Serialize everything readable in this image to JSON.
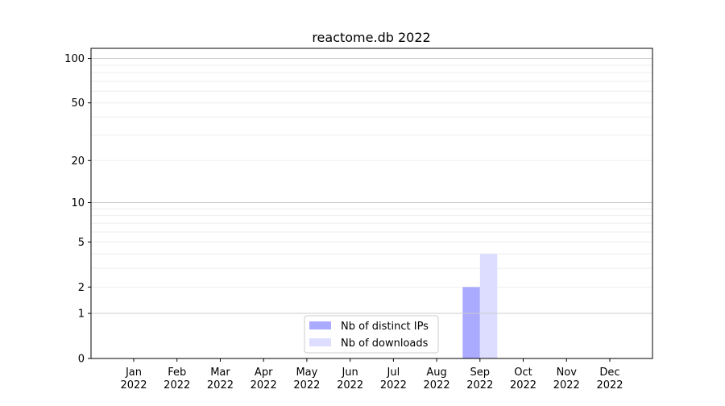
{
  "chart_data": {
    "type": "bar",
    "title": "reactome.db 2022",
    "xlabel": "",
    "ylabel": "",
    "yscale": "log(1+y)",
    "ylim": [
      0,
      117
    ],
    "yticks": [
      0,
      1,
      2,
      5,
      10,
      20,
      50,
      100
    ],
    "ytick_labels": [
      "0",
      "1",
      "2",
      "5",
      "10",
      "20",
      "50",
      "100"
    ],
    "categories": [
      "Jan\n2022",
      "Feb\n2022",
      "Mar\n2022",
      "Apr\n2022",
      "May\n2022",
      "Jun\n2022",
      "Jul\n2022",
      "Aug\n2022",
      "Sep\n2022",
      "Oct\n2022",
      "Nov\n2022",
      "Dec\n2022"
    ],
    "month_labels": [
      "Jan",
      "Feb",
      "Mar",
      "Apr",
      "May",
      "Jun",
      "Jul",
      "Aug",
      "Sep",
      "Oct",
      "Nov",
      "Dec"
    ],
    "year_label": "2022",
    "grid": true,
    "legend_position": "bottom-center",
    "series": [
      {
        "name": "Nb of distinct IPs",
        "color": "#aaaaff",
        "values": [
          0,
          0,
          0,
          0,
          0,
          0,
          0,
          0,
          2,
          0,
          0,
          0
        ]
      },
      {
        "name": "Nb of downloads",
        "color": "#ddddff",
        "values": [
          0,
          0,
          0,
          0,
          0,
          0,
          0,
          0,
          4,
          0,
          0,
          0
        ]
      }
    ]
  }
}
